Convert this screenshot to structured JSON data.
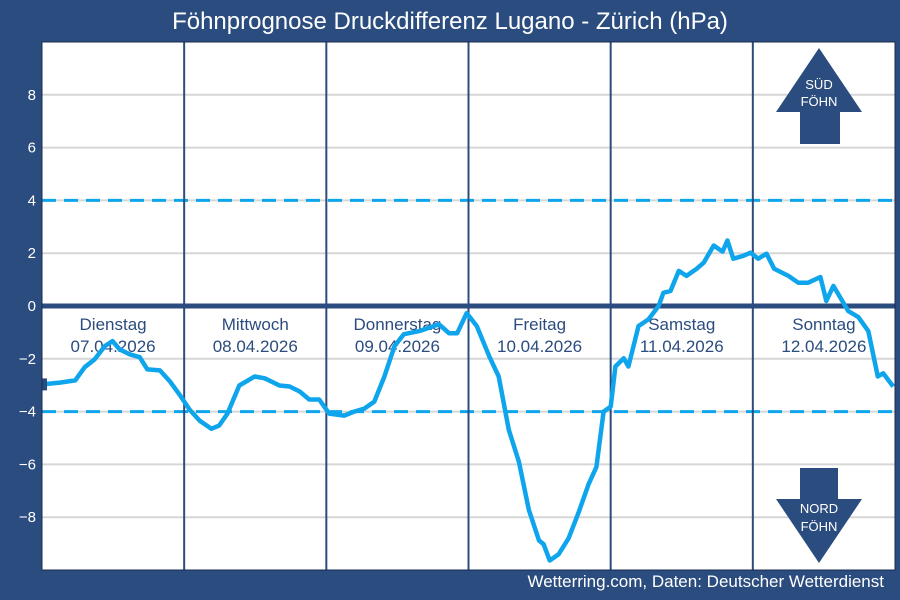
{
  "chart_data": {
    "type": "line",
    "title": "Föhnprognose Druckdifferenz Lugano - Zürich (hPa)",
    "xlabel": "",
    "ylabel": "",
    "ylim": [
      -10,
      10
    ],
    "xlim_hours": [
      0,
      144
    ],
    "yticks": [
      -8,
      -6,
      -4,
      -2,
      0,
      2,
      4,
      6,
      8
    ],
    "ytick_labels": [
      "−8",
      "−6",
      "−4",
      "−2",
      "0",
      "2",
      "4",
      "6",
      "8"
    ],
    "thresholds": [
      4,
      -4
    ],
    "grid": true,
    "days": [
      {
        "name": "Dienstag",
        "date": "07.04.2026"
      },
      {
        "name": "Mittwoch",
        "date": "08.04.2026"
      },
      {
        "name": "Donnerstag",
        "date": "09.04.2026"
      },
      {
        "name": "Freitag",
        "date": "10.04.2026"
      },
      {
        "name": "Samstag",
        "date": "11.04.2026"
      },
      {
        "name": "Sonntag",
        "date": "12.04.2026"
      }
    ],
    "series": [
      {
        "name": "Druckdifferenz",
        "x_hours": [
          0,
          3.0,
          5.6,
          7.2,
          8.9,
          10.6,
          11.9,
          13.1,
          14.8,
          16.5,
          17.8,
          19.9,
          21.6,
          23.2,
          24.9,
          26.6,
          28.6,
          29.9,
          31.3,
          33.3,
          35.9,
          37.6,
          40.1,
          41.8,
          43.5,
          45.1,
          46.8,
          48.5,
          51.0,
          52.7,
          54.4,
          56.1,
          57.8,
          59.5,
          61.1,
          63.7,
          67.0,
          68.7,
          70.1,
          71.7,
          73.4,
          75.5,
          77.1,
          78.8,
          80.5,
          82.2,
          83.9,
          84.7,
          85.7,
          87.2,
          88.9,
          90.6,
          92.3,
          93.6,
          94.8,
          96.0,
          96.8,
          98.2,
          99.0,
          100.7,
          102.4,
          104.1,
          104.9,
          106.1,
          107.5,
          108.8,
          110.5,
          111.7,
          113.4,
          114.9,
          115.7,
          116.7,
          118.4,
          119.6,
          120.9,
          122.3,
          123.6,
          126.0,
          127.7,
          129.3,
          131.4,
          132.4,
          133.6,
          136.1,
          137.8,
          139.5,
          141.1,
          142.0,
          143.7
        ],
        "values": [
          -2.97,
          -2.9,
          -2.82,
          -2.32,
          -2.02,
          -1.52,
          -1.33,
          -1.64,
          -1.83,
          -1.94,
          -2.4,
          -2.44,
          -2.86,
          -3.35,
          -3.92,
          -4.34,
          -4.65,
          -4.53,
          -4.08,
          -3.01,
          -2.67,
          -2.74,
          -3.01,
          -3.05,
          -3.24,
          -3.54,
          -3.54,
          -4.08,
          -4.15,
          -4.0,
          -3.89,
          -3.62,
          -2.67,
          -1.52,
          -1.07,
          -0.95,
          -0.69,
          -1.03,
          -1.03,
          -0.27,
          -0.76,
          -1.9,
          -2.67,
          -4.69,
          -5.9,
          -7.73,
          -8.88,
          -9.03,
          -9.64,
          -9.41,
          -8.8,
          -7.81,
          -6.74,
          -6.1,
          -4.0,
          -3.81,
          -2.29,
          -1.98,
          -2.29,
          -0.76,
          -0.5,
          0,
          0.5,
          0.57,
          1.33,
          1.14,
          1.41,
          1.64,
          2.29,
          2.06,
          2.48,
          1.79,
          1.9,
          2.02,
          1.79,
          1.98,
          1.41,
          1.14,
          0.88,
          0.88,
          1.1,
          0.19,
          0.76,
          -0.19,
          -0.42,
          -0.95,
          -2.67,
          -2.55,
          -3.05
        ]
      }
    ],
    "annotations": {
      "sued": [
        "SÜD",
        "FÖHN"
      ],
      "nord": [
        "NORD",
        "FÖHN"
      ]
    }
  },
  "footer": "Wetterring.com, Daten: Deutscher Wetterdienst",
  "colors": {
    "frame": "#2b4c7e",
    "line": "#0ea5ec",
    "grid": "#d6d6d6"
  }
}
